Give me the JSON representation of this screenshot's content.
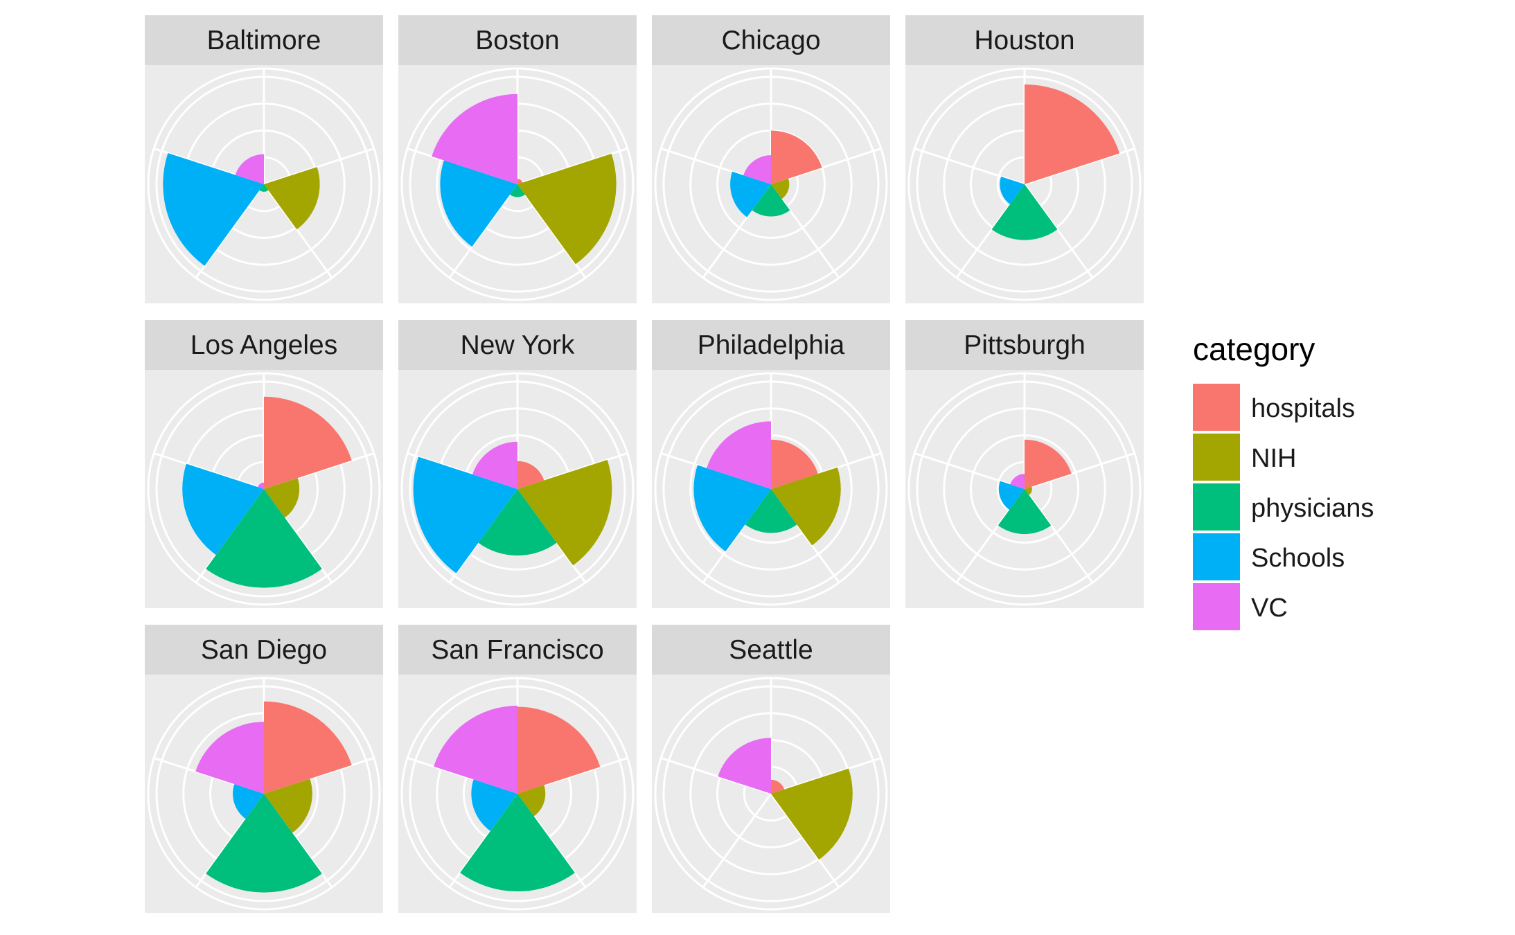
{
  "chart_data": {
    "type": "polar-bar",
    "facet_by": "city",
    "theta_order": [
      "hospitals",
      "NIH",
      "physicians",
      "Schools",
      "VC"
    ],
    "radial_max": 1.0,
    "radial_rings": [
      0.25,
      0.5,
      0.75,
      1.0
    ],
    "grid": true,
    "legend": {
      "title": "category",
      "placement": "right",
      "entries": [
        {
          "label": "hospitals",
          "color": "#F8766D"
        },
        {
          "label": "NIH",
          "color": "#A3A500"
        },
        {
          "label": "physicians",
          "color": "#00BF7D"
        },
        {
          "label": "Schools",
          "color": "#00B0F6"
        },
        {
          "label": "VC",
          "color": "#E76BF3"
        }
      ]
    },
    "facets": [
      {
        "city": "Baltimore",
        "values": {
          "hospitals": 0.0,
          "NIH": 0.52,
          "physicians": 0.07,
          "Schools": 0.94,
          "VC": 0.28
        }
      },
      {
        "city": "Boston",
        "values": {
          "hospitals": 0.05,
          "NIH": 0.92,
          "physicians": 0.12,
          "Schools": 0.72,
          "VC": 0.84
        }
      },
      {
        "city": "Chicago",
        "values": {
          "hospitals": 0.5,
          "NIH": 0.17,
          "physicians": 0.3,
          "Schools": 0.38,
          "VC": 0.27
        }
      },
      {
        "city": "Houston",
        "values": {
          "hospitals": 0.93,
          "NIH": 0.0,
          "physicians": 0.52,
          "Schools": 0.23,
          "VC": 0.0
        }
      },
      {
        "city": "Los Angeles",
        "values": {
          "hospitals": 0.86,
          "NIH": 0.33,
          "physicians": 0.92,
          "Schools": 0.76,
          "VC": 0.06
        }
      },
      {
        "city": "New York",
        "values": {
          "hospitals": 0.26,
          "NIH": 0.88,
          "physicians": 0.62,
          "Schools": 0.97,
          "VC": 0.44
        }
      },
      {
        "city": "Philadelphia",
        "values": {
          "hospitals": 0.46,
          "NIH": 0.65,
          "physicians": 0.41,
          "Schools": 0.72,
          "VC": 0.63
        }
      },
      {
        "city": "Pittsburgh",
        "values": {
          "hospitals": 0.46,
          "NIH": 0.07,
          "physicians": 0.42,
          "Schools": 0.24,
          "VC": 0.14
        }
      },
      {
        "city": "San Diego",
        "values": {
          "hospitals": 0.86,
          "NIH": 0.45,
          "physicians": 0.92,
          "Schools": 0.29,
          "VC": 0.67
        }
      },
      {
        "city": "San Francisco",
        "values": {
          "hospitals": 0.81,
          "NIH": 0.26,
          "physicians": 0.91,
          "Schools": 0.43,
          "VC": 0.82
        }
      },
      {
        "city": "Seattle",
        "values": {
          "hospitals": 0.13,
          "NIH": 0.76,
          "physicians": 0.0,
          "Schools": 0.0,
          "VC": 0.52
        }
      }
    ]
  }
}
